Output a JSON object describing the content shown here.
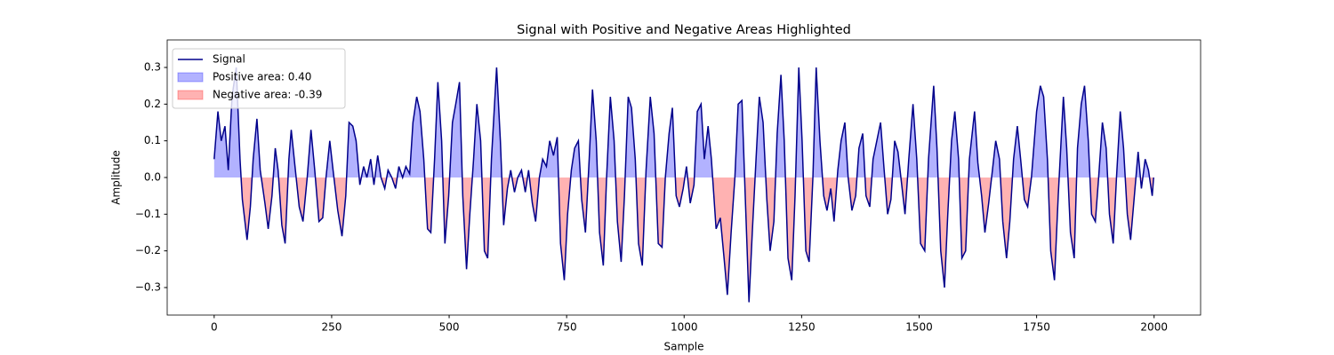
{
  "chart_data": {
    "type": "line",
    "title": "Signal with Positive and Negative Areas Highlighted",
    "x_label": "Sample",
    "y_label": "Amplitude",
    "xlim": [
      -99.95,
      2098.95
    ],
    "ylim": [
      -0.375,
      0.375
    ],
    "xticks": [
      0,
      250,
      500,
      750,
      1000,
      1250,
      1500,
      1750,
      2000
    ],
    "yticks": [
      {
        "value": -0.3,
        "label": "−0.3"
      },
      {
        "value": -0.2,
        "label": "−0.2"
      },
      {
        "value": -0.1,
        "label": "−0.1"
      },
      {
        "value": 0,
        "label": "0.0"
      },
      0.1,
      0.2,
      0.3
    ],
    "legend": "upper left",
    "x": [
      0,
      8,
      15,
      23,
      30,
      38,
      47,
      55,
      60,
      70,
      77,
      83,
      91,
      98,
      108,
      115,
      123,
      130,
      136,
      144,
      151,
      159,
      164,
      172,
      181,
      189,
      198,
      206,
      214,
      223,
      231,
      238,
      246,
      253,
      263,
      272,
      280,
      287,
      295,
      302,
      310,
      318,
      325,
      333,
      340,
      348,
      355,
      363,
      370,
      378,
      386,
      393,
      401,
      408,
      416,
      423,
      431,
      438,
      446,
      454,
      461,
      469,
      476,
      484,
      491,
      499,
      507,
      514,
      522,
      529,
      537,
      544,
      552,
      559,
      567,
      575,
      582,
      590,
      601,
      609,
      616,
      624,
      631,
      639,
      646,
      654,
      662,
      669,
      677,
      684,
      692,
      699,
      707,
      714,
      722,
      730,
      737,
      745,
      752,
      760,
      767,
      775,
      782,
      790,
      798,
      805,
      813,
      820,
      828,
      835,
      843,
      851,
      858,
      866,
      873,
      881,
      888,
      896,
      903,
      911,
      919,
      928,
      936,
      945,
      953,
      960,
      968,
      975,
      983,
      990,
      998,
      1005,
      1013,
      1021,
      1028,
      1036,
      1043,
      1051,
      1058,
      1068,
      1077,
      1085,
      1092,
      1100,
      1108,
      1115,
      1123,
      1130,
      1138,
      1145,
      1153,
      1160,
      1168,
      1176,
      1183,
      1191,
      1198,
      1206,
      1213,
      1221,
      1229,
      1236,
      1244,
      1251,
      1259,
      1266,
      1274,
      1281,
      1289,
      1297,
      1304,
      1312,
      1319,
      1327,
      1334,
      1342,
      1349,
      1357,
      1365,
      1372,
      1380,
      1387,
      1395,
      1402,
      1410,
      1418,
      1425,
      1433,
      1440,
      1448,
      1455,
      1463,
      1470,
      1478,
      1487,
      1495,
      1503,
      1512,
      1520,
      1531,
      1538,
      1546,
      1554,
      1561,
      1569,
      1576,
      1584,
      1591,
      1599,
      1607,
      1618,
      1625,
      1633,
      1640,
      1648,
      1656,
      1663,
      1671,
      1678,
      1686,
      1693,
      1701,
      1709,
      1716,
      1724,
      1731,
      1739,
      1750,
      1758,
      1765,
      1773,
      1780,
      1788,
      1796,
      1807,
      1814,
      1822,
      1830,
      1837,
      1845,
      1852,
      1860,
      1867,
      1875,
      1882,
      1890,
      1898,
      1905,
      1913,
      1920,
      1928,
      1935,
      1943,
      1950,
      1958,
      1966,
      1973,
      1981,
      1988,
      1996,
      1999
    ],
    "series": [
      {
        "name": "Signal",
        "color": "#00008b",
        "values": [
          0.05,
          0.18,
          0.1,
          0.14,
          0.02,
          0.22,
          0.3,
          0.05,
          -0.06,
          -0.17,
          -0.08,
          0.05,
          0.16,
          0.02,
          -0.07,
          -0.14,
          -0.05,
          0.08,
          0.02,
          -0.13,
          -0.18,
          0.05,
          0.13,
          0.03,
          -0.08,
          -0.12,
          0.0,
          0.13,
          0.02,
          -0.12,
          -0.11,
          0.0,
          0.1,
          0.02,
          -0.09,
          -0.16,
          -0.05,
          0.15,
          0.14,
          0.1,
          -0.02,
          0.03,
          0.0,
          0.05,
          -0.02,
          0.06,
          0.0,
          -0.03,
          0.02,
          0.0,
          -0.03,
          0.03,
          0.0,
          0.03,
          0.01,
          0.15,
          0.22,
          0.18,
          0.05,
          -0.14,
          -0.15,
          0.05,
          0.26,
          0.1,
          -0.18,
          -0.05,
          0.15,
          0.2,
          0.26,
          -0.05,
          -0.25,
          -0.1,
          0.05,
          0.2,
          0.1,
          -0.2,
          -0.22,
          0.05,
          0.3,
          0.1,
          -0.13,
          -0.03,
          0.02,
          -0.04,
          0.0,
          0.02,
          -0.04,
          0.02,
          -0.07,
          -0.12,
          0.0,
          0.05,
          0.03,
          0.1,
          0.06,
          0.11,
          -0.18,
          -0.28,
          -0.1,
          0.02,
          0.08,
          0.1,
          -0.06,
          -0.15,
          0.05,
          0.24,
          0.1,
          -0.15,
          -0.24,
          0.0,
          0.22,
          0.1,
          -0.12,
          -0.23,
          -0.05,
          0.22,
          0.19,
          0.05,
          -0.18,
          -0.24,
          0.02,
          0.22,
          0.12,
          -0.18,
          -0.19,
          0.0,
          0.12,
          0.19,
          -0.05,
          -0.08,
          -0.03,
          0.03,
          -0.07,
          -0.02,
          0.18,
          0.2,
          0.05,
          0.14,
          0.05,
          -0.14,
          -0.11,
          -0.22,
          -0.32,
          -0.15,
          0.0,
          0.2,
          0.21,
          -0.05,
          -0.34,
          -0.15,
          0.05,
          0.22,
          0.15,
          -0.06,
          -0.2,
          -0.12,
          0.12,
          0.28,
          0.1,
          -0.22,
          -0.28,
          -0.05,
          0.3,
          0.1,
          -0.2,
          -0.23,
          0.0,
          0.3,
          0.1,
          -0.05,
          -0.09,
          -0.03,
          -0.12,
          0.02,
          0.1,
          0.15,
          0.0,
          -0.09,
          -0.05,
          0.08,
          0.12,
          -0.05,
          -0.08,
          0.05,
          0.1,
          0.15,
          0.03,
          -0.1,
          -0.06,
          0.1,
          0.07,
          -0.02,
          -0.1,
          0.05,
          0.2,
          0.05,
          -0.18,
          -0.2,
          0.05,
          0.25,
          0.08,
          -0.2,
          -0.3,
          -0.1,
          0.1,
          0.18,
          0.05,
          -0.22,
          -0.2,
          0.05,
          0.18,
          0.04,
          -0.05,
          -0.15,
          -0.07,
          0.02,
          0.1,
          0.05,
          -0.12,
          -0.22,
          -0.12,
          0.05,
          0.14,
          0.05,
          -0.06,
          -0.08,
          0.0,
          0.18,
          0.25,
          0.22,
          0.05,
          -0.2,
          -0.28,
          -0.05,
          0.22,
          0.08,
          -0.15,
          -0.22,
          0.08,
          0.2,
          0.25,
          0.1,
          -0.1,
          -0.12,
          0.0,
          0.15,
          0.08,
          -0.1,
          -0.18,
          0.0,
          0.18,
          0.08,
          -0.1,
          -0.17,
          -0.05,
          0.07,
          -0.03,
          0.05,
          0.02,
          -0.05,
          0.0
        ]
      }
    ],
    "positive_fill": {
      "name": "Positive area: 0.40",
      "color": "#0000ff",
      "alpha": 0.3
    },
    "negative_fill": {
      "name": "Negative area: -0.39",
      "color": "#ff0000",
      "alpha": 0.3
    }
  }
}
